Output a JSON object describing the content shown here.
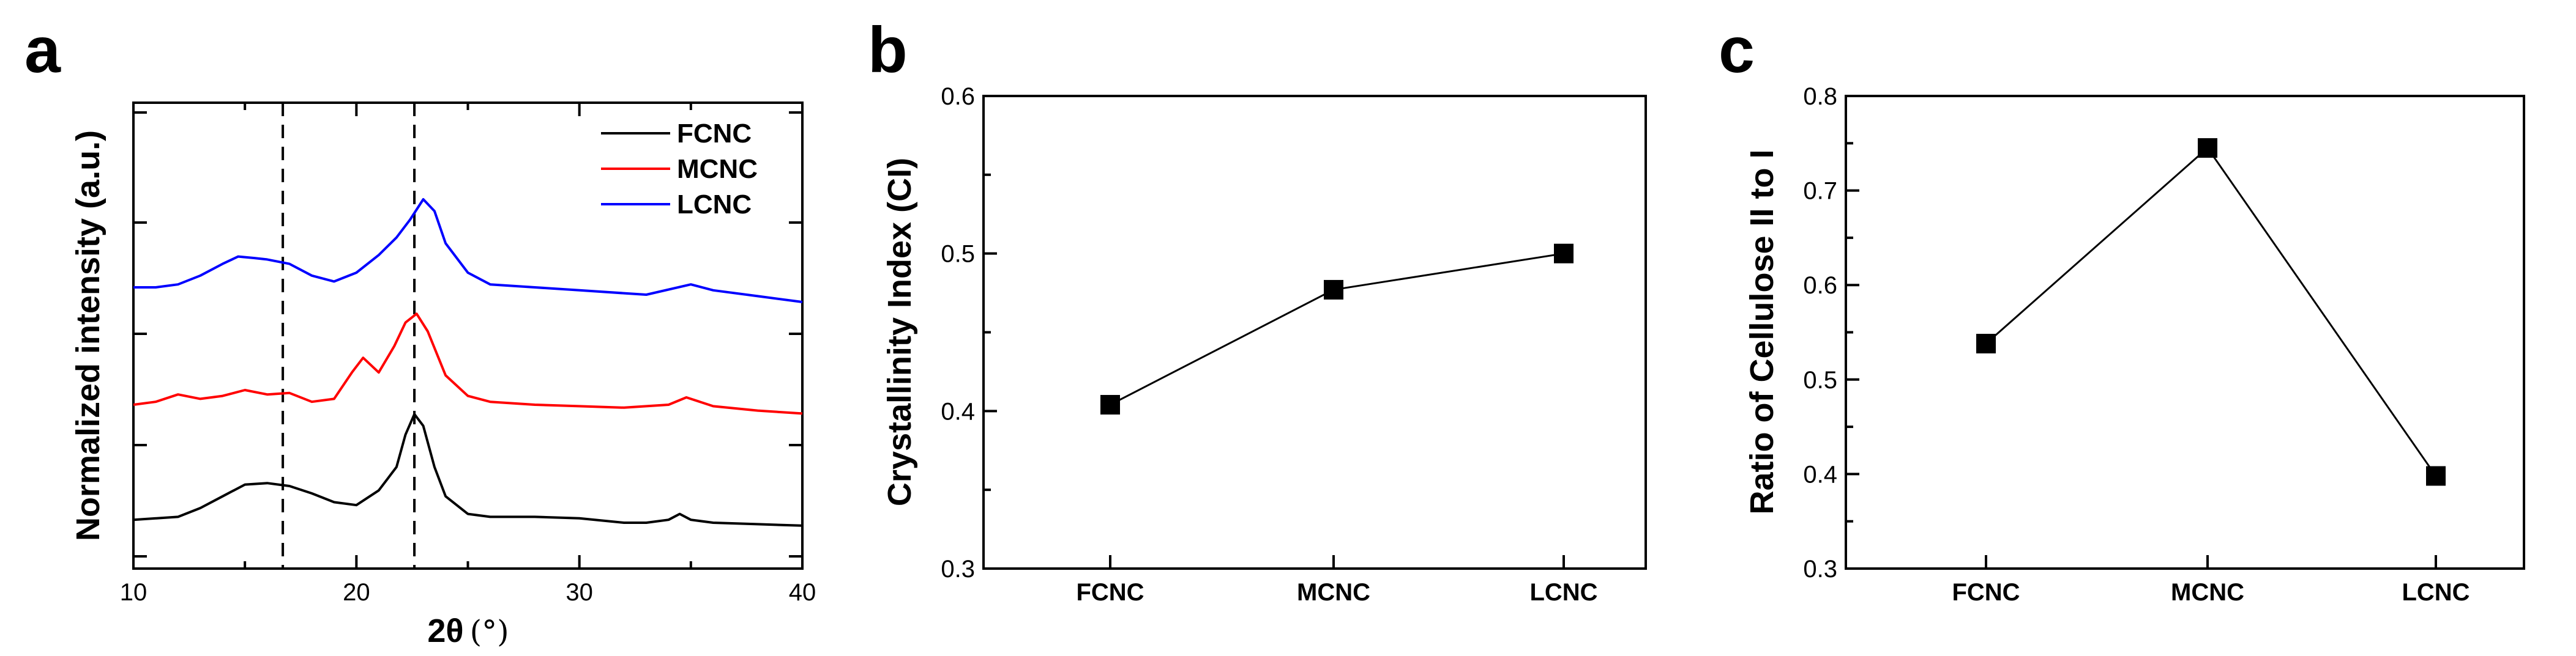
{
  "panels": {
    "a": {
      "letter": "a"
    },
    "b": {
      "letter": "b"
    },
    "c": {
      "letter": "c"
    }
  },
  "chart_data": [
    {
      "panel": "a",
      "type": "line",
      "xlabel_main": "2θ",
      "xlabel_unit": "(°)",
      "ylabel": "Normalized intensity (a.u.)",
      "xlim": [
        10,
        40
      ],
      "x_ticks": [
        "10",
        "20",
        "30",
        "40"
      ],
      "y_tick_labels_shown": false,
      "dashed_reference_lines_x": [
        16.7,
        22.6
      ],
      "legend_position": "top-right",
      "series": [
        {
          "name": "FCNC",
          "color": "#000000",
          "x": [
            10,
            12,
            13,
            14,
            15,
            16,
            17,
            18,
            19,
            20,
            21,
            21.8,
            22.2,
            22.6,
            23,
            23.5,
            24,
            25,
            26,
            28,
            30,
            32,
            33,
            34,
            34.5,
            35,
            36,
            38,
            40
          ],
          "y": [
            0.06,
            0.07,
            0.1,
            0.14,
            0.18,
            0.185,
            0.175,
            0.15,
            0.12,
            0.11,
            0.16,
            0.24,
            0.35,
            0.42,
            0.38,
            0.24,
            0.14,
            0.08,
            0.07,
            0.07,
            0.065,
            0.05,
            0.05,
            0.06,
            0.08,
            0.06,
            0.05,
            0.045,
            0.04
          ]
        },
        {
          "name": "MCNC",
          "color": "#ff0000",
          "x": [
            10,
            11,
            12,
            13,
            14,
            15,
            16,
            17,
            18,
            19,
            19.8,
            20.3,
            21,
            21.7,
            22.2,
            22.7,
            23.2,
            24,
            25,
            26,
            28,
            30,
            32,
            34,
            34.8,
            36,
            38,
            40
          ],
          "y": [
            0.05,
            0.06,
            0.085,
            0.07,
            0.08,
            0.1,
            0.085,
            0.09,
            0.06,
            0.07,
            0.16,
            0.21,
            0.16,
            0.25,
            0.33,
            0.36,
            0.3,
            0.15,
            0.08,
            0.06,
            0.05,
            0.045,
            0.04,
            0.05,
            0.075,
            0.045,
            0.03,
            0.02
          ]
        },
        {
          "name": "LCNC",
          "color": "#0000ff",
          "x": [
            10,
            11,
            12,
            13,
            14,
            14.7,
            15.4,
            16,
            17,
            18,
            19,
            20,
            21,
            21.8,
            22.4,
            23,
            23.5,
            24,
            25,
            26,
            28,
            30,
            32,
            33,
            35,
            36,
            38,
            40
          ],
          "y": [
            0.05,
            0.05,
            0.06,
            0.09,
            0.13,
            0.155,
            0.15,
            0.145,
            0.13,
            0.09,
            0.07,
            0.1,
            0.16,
            0.22,
            0.28,
            0.35,
            0.31,
            0.2,
            0.1,
            0.06,
            0.05,
            0.04,
            0.03,
            0.025,
            0.06,
            0.04,
            0.02,
            0.0
          ]
        }
      ]
    },
    {
      "panel": "b",
      "type": "line",
      "categories": [
        "FCNC",
        "MCNC",
        "LCNC"
      ],
      "ylabel": "Crystallinity Index (CI)",
      "ylim": [
        0.3,
        0.6
      ],
      "y_ticks": [
        "0.3",
        "0.4",
        "0.5",
        "0.6"
      ],
      "series": [
        {
          "values": [
            0.404,
            0.477,
            0.5
          ],
          "color": "#000000",
          "marker": "square"
        }
      ]
    },
    {
      "panel": "c",
      "type": "line",
      "categories": [
        "FCNC",
        "MCNC",
        "LCNC"
      ],
      "ylabel": "Ratio of Cellulose II to I",
      "ylim": [
        0.3,
        0.8
      ],
      "y_ticks": [
        "0.3",
        "0.4",
        "0.5",
        "0.6",
        "0.7",
        "0.8"
      ],
      "series": [
        {
          "values": [
            0.538,
            0.745,
            0.398
          ],
          "color": "#000000",
          "marker": "square"
        }
      ]
    }
  ]
}
